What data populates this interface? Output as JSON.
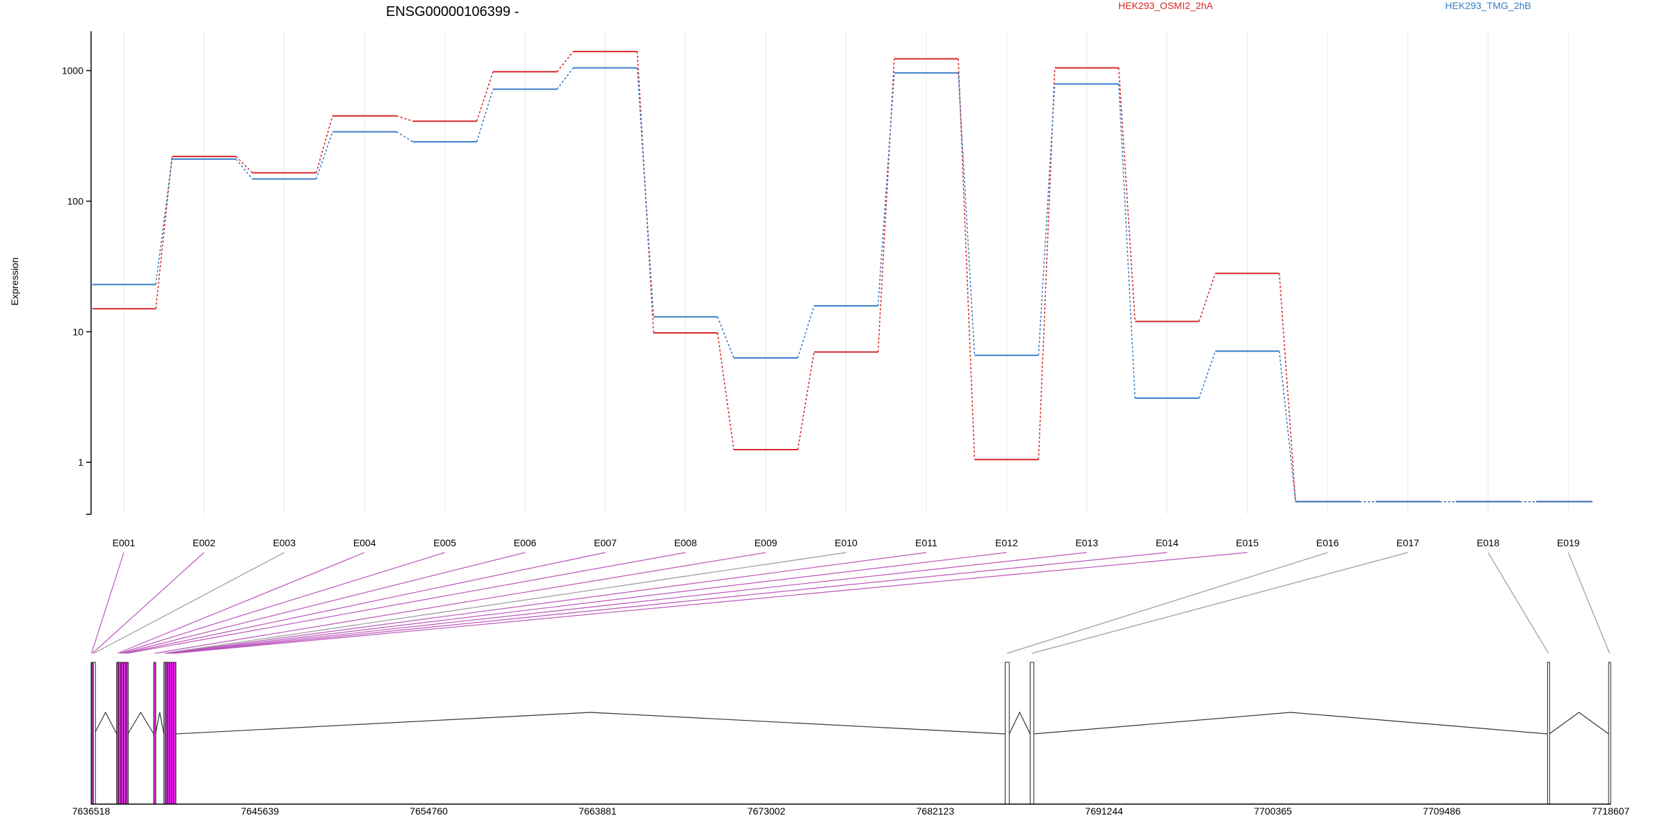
{
  "chart_data": {
    "type": "line",
    "title": "ENSG00000106399 -",
    "ylabel": "Expression",
    "xlabel": "",
    "yscale": "log",
    "ylim": [
      0.4,
      2000
    ],
    "yticks": [
      1,
      10,
      100,
      1000
    ],
    "grid": "vertical",
    "legend_placement": "top-right",
    "categories": [
      "E001",
      "E002",
      "E003",
      "E004",
      "E005",
      "E006",
      "E007",
      "E008",
      "E009",
      "E010",
      "E011",
      "E012",
      "E013",
      "E014",
      "E015",
      "E016",
      "E017",
      "E018",
      "E019"
    ],
    "series": [
      {
        "name": "HEK293_OSMI2_2hA",
        "color": "#d62728",
        "values": [
          15,
          220,
          165,
          450,
          410,
          980,
          1400,
          9.8,
          1.25,
          7,
          1230,
          1.05,
          1050,
          12,
          28,
          0.5,
          0.5,
          0.5,
          0.5
        ]
      },
      {
        "name": "HEK293_TMG_2hB",
        "color": "#3a7dc8",
        "values": [
          23,
          210,
          148,
          340,
          285,
          720,
          1050,
          13,
          6.3,
          15.8,
          960,
          6.6,
          790,
          3.1,
          7.1,
          0.5,
          0.5,
          0.5,
          0.5
        ]
      }
    ],
    "gene_model": {
      "axis_ticks": [
        "7636518",
        "7645639",
        "7654760",
        "7663881",
        "7673002",
        "7682123",
        "7691244",
        "7700365",
        "7709486",
        "7718607"
      ],
      "range": [
        7636518,
        7718607
      ],
      "exon_fill_color": "#ee22ee",
      "connector_highlight_color": "#bb55bb",
      "connector_color": "#999999",
      "exons": [
        {
          "id": "E001",
          "start": 7636518,
          "end": 7636560,
          "highlight": true
        },
        {
          "id": "E002",
          "start": 7636560,
          "end": 7636620,
          "highlight": true
        },
        {
          "id": "E003",
          "start": 7636640,
          "end": 7636690,
          "highlight": false
        },
        {
          "id": "E004",
          "start": 7637900,
          "end": 7637990,
          "highlight": true
        },
        {
          "id": "E005",
          "start": 7638000,
          "end": 7638130,
          "highlight": true
        },
        {
          "id": "E006",
          "start": 7638140,
          "end": 7638260,
          "highlight": true
        },
        {
          "id": "E007",
          "start": 7638270,
          "end": 7638400,
          "highlight": true
        },
        {
          "id": "E008",
          "start": 7638410,
          "end": 7638500,
          "highlight": true
        },
        {
          "id": "E009",
          "start": 7639900,
          "end": 7640000,
          "highlight": true
        },
        {
          "id": "E010",
          "start": 7640450,
          "end": 7640500,
          "highlight": false
        },
        {
          "id": "E011",
          "start": 7640510,
          "end": 7640620,
          "highlight": true
        },
        {
          "id": "E012",
          "start": 7640630,
          "end": 7640730,
          "highlight": true
        },
        {
          "id": "E013",
          "start": 7640740,
          "end": 7640850,
          "highlight": true
        },
        {
          "id": "E014",
          "start": 7640860,
          "end": 7640960,
          "highlight": true
        },
        {
          "id": "E015",
          "start": 7640970,
          "end": 7641100,
          "highlight": true
        },
        {
          "id": "E016",
          "start": 7685900,
          "end": 7686120,
          "highlight": false
        },
        {
          "id": "E017",
          "start": 7687250,
          "end": 7687450,
          "highlight": false
        },
        {
          "id": "E018",
          "start": 7715200,
          "end": 7715300,
          "highlight": false
        },
        {
          "id": "E019",
          "start": 7718500,
          "end": 7718607,
          "highlight": false
        }
      ]
    }
  }
}
